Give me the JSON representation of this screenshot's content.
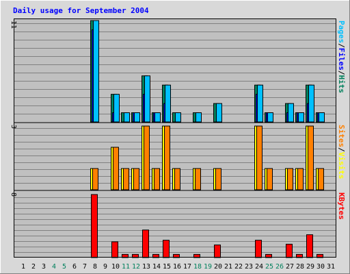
{
  "chart_data": {
    "type": "bar",
    "title": "Daily usage for September 2004",
    "categories": [
      "1",
      "2",
      "3",
      "4",
      "5",
      "6",
      "7",
      "8",
      "9",
      "10",
      "11",
      "12",
      "13",
      "14",
      "15",
      "16",
      "17",
      "18",
      "19",
      "20",
      "21",
      "22",
      "23",
      "24",
      "25",
      "26",
      "27",
      "28",
      "29",
      "30",
      "31"
    ],
    "weekend_days": [
      "4",
      "5",
      "11",
      "12",
      "18",
      "19",
      "25",
      "26"
    ],
    "colors": {
      "hits": "#00805c",
      "files": "#0000ff",
      "pages": "#00c0ff",
      "visits": "#ffff00",
      "sites": "#ff8000",
      "kbytes": "#ff0000",
      "title": "#0000ff",
      "weekday_label": "#000000",
      "weekend_label": "#00805c",
      "plot_background": "#c0c0c0",
      "frame_background": "#d8d8d8",
      "grid": "#808080"
    },
    "panels": [
      {
        "key": "hits_files_pages",
        "max_label": "11",
        "ylim": [
          0,
          11
        ],
        "legend": [
          {
            "text": "Pages",
            "color": "#00c0ff"
          },
          {
            "text": "/",
            "color": "#000000"
          },
          {
            "text": "Files",
            "color": "#0000ff"
          },
          {
            "text": "/",
            "color": "#000000"
          },
          {
            "text": "Hits",
            "color": "#00805c"
          }
        ],
        "series": [
          {
            "name": "Hits",
            "color": "#00805c",
            "values": [
              0,
              0,
              0,
              0,
              0,
              0,
              0,
              11,
              0,
              3,
              1,
              1,
              5,
              1,
              4,
              1,
              0,
              1,
              0,
              2,
              0,
              0,
              0,
              4,
              1,
              0,
              2,
              1,
              4,
              1,
              0
            ]
          },
          {
            "name": "Files",
            "color": "#0000ff",
            "values": [
              0,
              0,
              0,
              0,
              0,
              0,
              0,
              10,
              0,
              1,
              0,
              1,
              3,
              1,
              2,
              0,
              0,
              0,
              0,
              0,
              0,
              0,
              0,
              3,
              1,
              0,
              1,
              1,
              2,
              1,
              0
            ]
          },
          {
            "name": "Pages",
            "color": "#00c0ff",
            "values": [
              0,
              0,
              0,
              0,
              0,
              0,
              0,
              11,
              0,
              3,
              1,
              1,
              5,
              1,
              4,
              1,
              0,
              1,
              0,
              2,
              0,
              0,
              0,
              4,
              1,
              0,
              2,
              1,
              4,
              1,
              0
            ]
          }
        ]
      },
      {
        "key": "visits_sites",
        "max_label": "3",
        "ylim": [
          0,
          3
        ],
        "legend": [
          {
            "text": "Sites",
            "color": "#ff8000"
          },
          {
            "text": "/",
            "color": "#000000"
          },
          {
            "text": "Visits",
            "color": "#ffff00"
          }
        ],
        "series": [
          {
            "name": "Visits",
            "color": "#ffff00",
            "values": [
              0,
              0,
              0,
              0,
              0,
              0,
              0,
              1,
              0,
              2,
              1,
              1,
              3,
              1,
              3,
              1,
              0,
              1,
              0,
              1,
              0,
              0,
              0,
              3,
              1,
              0,
              1,
              1,
              3,
              1,
              0
            ]
          },
          {
            "name": "Sites",
            "color": "#ff8000",
            "values": [
              0,
              0,
              0,
              0,
              0,
              0,
              0,
              1,
              0,
              2,
              1,
              1,
              3,
              1,
              3,
              1,
              0,
              1,
              0,
              1,
              0,
              0,
              0,
              3,
              1,
              0,
              1,
              1,
              3,
              1,
              0
            ]
          }
        ]
      },
      {
        "key": "kbytes",
        "max_label": "8",
        "ylim": [
          0,
          8
        ],
        "legend": [
          {
            "text": "KBytes",
            "color": "#ff0000"
          }
        ],
        "series": [
          {
            "name": "KBytes",
            "color": "#ff0000",
            "values": [
              0,
              0,
              0,
              0,
              0,
              0,
              0,
              8,
              0,
              2,
              0.4,
              0.4,
              3.5,
              0.4,
              2.2,
              0.4,
              0,
              0.4,
              0,
              1.6,
              0,
              0,
              0,
              2.2,
              0.4,
              0,
              1.7,
              0.4,
              2.9,
              0.4,
              0
            ]
          }
        ]
      }
    ]
  }
}
